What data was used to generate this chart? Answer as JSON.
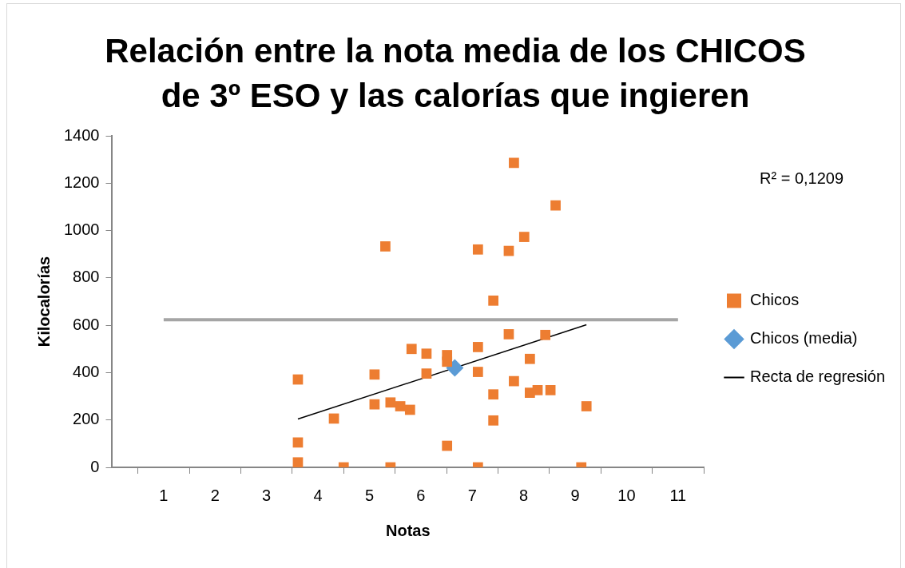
{
  "chart_data": {
    "type": "scatter",
    "title": "Relación entre la nota media de los CHICOS de 3º ESO y las calorías que ingieren",
    "xlabel": "Notas",
    "ylabel": "Kilocalorías",
    "xlim": [
      0,
      11.5
    ],
    "xticks": [
      {
        "value": 0.5,
        "label": null
      },
      1,
      {
        "value": 1.5,
        "label": null
      },
      2,
      {
        "value": 2.5,
        "label": null
      },
      3,
      {
        "value": 3.5,
        "label": null
      },
      4,
      {
        "value": 4.5,
        "label": null
      },
      5,
      {
        "value": 5.5,
        "label": null
      },
      6,
      {
        "value": 6.5,
        "label": null
      },
      7,
      {
        "value": 7.5,
        "label": null
      },
      8,
      {
        "value": 8.5,
        "label": null
      },
      9,
      {
        "value": 9.5,
        "label": null
      },
      10,
      {
        "value": 10.5,
        "label": null
      },
      11,
      {
        "value": 11.5,
        "label": null
      }
    ],
    "ylim": [
      0,
      1400
    ],
    "yticks": [
      0,
      200,
      400,
      600,
      800,
      1000,
      1200,
      1400
    ],
    "grid": false,
    "legend": "right",
    "annotations": [
      "R² = 0,1209"
    ],
    "series": [
      {
        "type": "line",
        "color": "#a5a5a5",
        "marker": "none",
        "x": [
          1,
          11
        ],
        "values": [
          623,
          623
        ]
      },
      {
        "name": "Chicos",
        "color": "#ed7d31",
        "marker": "square",
        "x": [
          3.61,
          3.61,
          3.61,
          4.31,
          4.5,
          5.1,
          5.1,
          5.31,
          5.41,
          5.41,
          5.6,
          5.79,
          5.82,
          6.11,
          6.11,
          6.51,
          6.51,
          6.51,
          7.11,
          7.11,
          7.11,
          7.11,
          7.41,
          7.41,
          7.41,
          7.71,
          7.71,
          7.81,
          7.81,
          8.01,
          8.12,
          8.12,
          8.27,
          8.52,
          8.42,
          8.62,
          9.12,
          9.22
        ],
        "values": [
          371,
          105,
          21,
          206,
          0,
          392,
          266,
          933,
          0,
          274,
          258,
          243,
          500,
          480,
          396,
          474,
          446,
          91,
          508,
          403,
          920,
          0,
          704,
          308,
          198,
          562,
          914,
          1286,
          364,
          973,
          458,
          315,
          326,
          326,
          559,
          1106,
          0,
          258
        ]
      },
      {
        "name": "Chicos (media)",
        "color": "#5b9bd5",
        "marker": "diamond",
        "x": [
          6.66
        ],
        "values": [
          420
        ]
      },
      {
        "type": "line",
        "name": "Recta de regresión",
        "color": "#000000",
        "marker": "none",
        "line_style": "solid",
        "x": [
          3.61,
          9.22
        ],
        "values": [
          204,
          602
        ]
      }
    ]
  }
}
